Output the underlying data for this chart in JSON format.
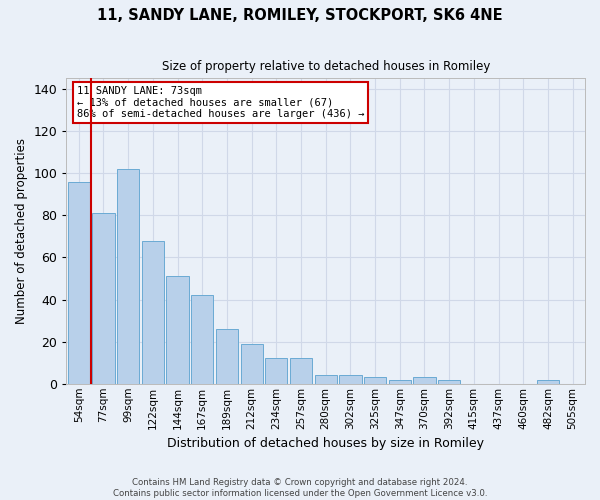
{
  "title1": "11, SANDY LANE, ROMILEY, STOCKPORT, SK6 4NE",
  "title2": "Size of property relative to detached houses in Romiley",
  "xlabel": "Distribution of detached houses by size in Romiley",
  "ylabel": "Number of detached properties",
  "categories": [
    "54sqm",
    "77sqm",
    "99sqm",
    "122sqm",
    "144sqm",
    "167sqm",
    "189sqm",
    "212sqm",
    "234sqm",
    "257sqm",
    "280sqm",
    "302sqm",
    "325sqm",
    "347sqm",
    "370sqm",
    "392sqm",
    "415sqm",
    "437sqm",
    "460sqm",
    "482sqm",
    "505sqm"
  ],
  "values": [
    96,
    81,
    102,
    68,
    51,
    42,
    26,
    19,
    12,
    12,
    4,
    4,
    3,
    2,
    3,
    2,
    0,
    0,
    0,
    2,
    0
  ],
  "bar_color": "#b8d0ea",
  "bar_edge_color": "#6aaad4",
  "vline_color": "#cc0000",
  "vline_pos": 0.5,
  "annotation_line1": "11 SANDY LANE: 73sqm",
  "annotation_line2": "← 13% of detached houses are smaller (67)",
  "annotation_line3": "86% of semi-detached houses are larger (436) →",
  "annotation_box_color": "#ffffff",
  "annotation_box_edge_color": "#cc0000",
  "ylim": [
    0,
    145
  ],
  "yticks": [
    0,
    20,
    40,
    60,
    80,
    100,
    120,
    140
  ],
  "grid_color": "#d0d8e8",
  "background_color": "#eaf0f8",
  "footer1": "Contains HM Land Registry data © Crown copyright and database right 2024.",
  "footer2": "Contains public sector information licensed under the Open Government Licence v3.0."
}
